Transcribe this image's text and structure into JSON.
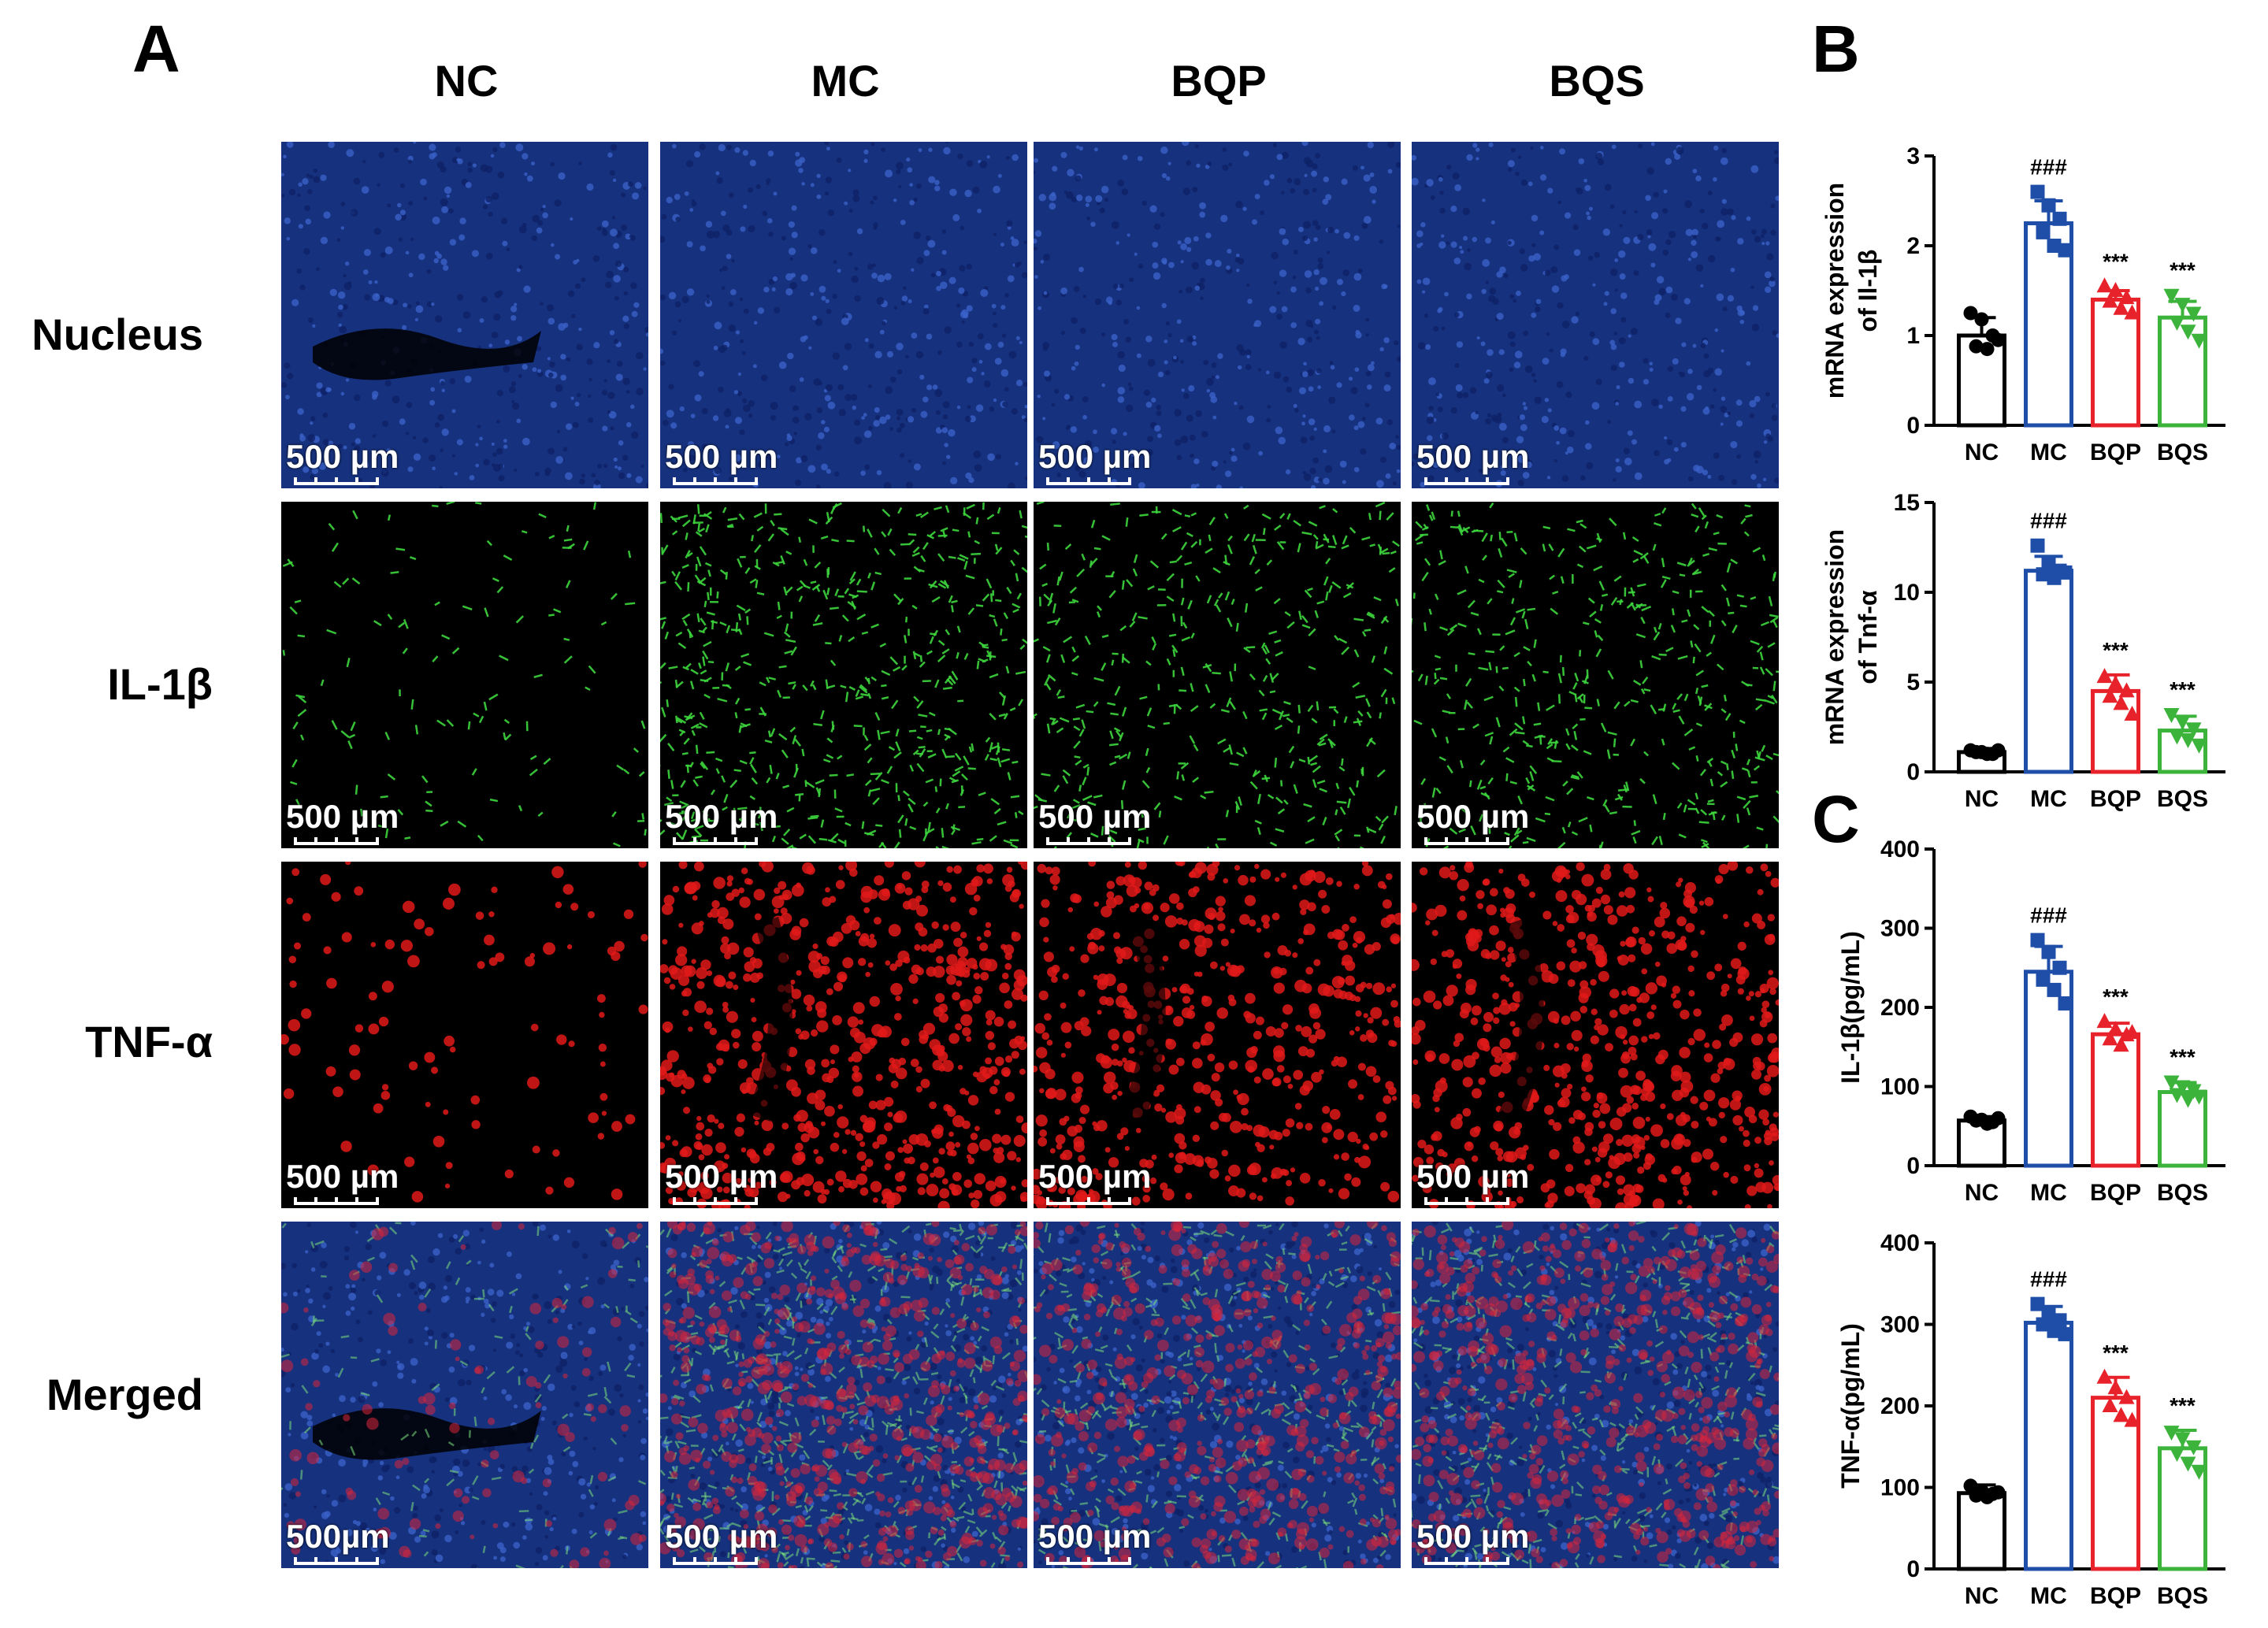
{
  "panels": {
    "a": "A",
    "b": "B",
    "c": "C"
  },
  "columns": [
    "NC",
    "MC",
    "BQP",
    "BQS"
  ],
  "rows": [
    {
      "label": "Nucleus",
      "channel": "blue",
      "scalebars": [
        "500 µm",
        "500 µm",
        "500 µm",
        "500 µm"
      ]
    },
    {
      "label": "IL-1β",
      "channel": "green",
      "scalebars": [
        "500 µm",
        "500 µm",
        "500 µm",
        "500 µm"
      ]
    },
    {
      "label": "TNF-α",
      "channel": "red",
      "scalebars": [
        "500 µm",
        "500 µm",
        "500 µm",
        "500 µm"
      ]
    },
    {
      "label": "Merged",
      "channel": "merged",
      "scalebars": [
        "500µm",
        "500 µm",
        "500 µm",
        "500 µm"
      ]
    }
  ],
  "colors": {
    "NC": "#000000",
    "MC": "#1f4ea8",
    "BQP": "#e8222a",
    "BQS": "#3cb43c",
    "nucleus": "#1d3f9a",
    "il1b": "#3dd63d",
    "tnfa": "#e11919"
  },
  "chart_data": [
    {
      "type": "bar",
      "panel": "B",
      "categories": [
        "NC",
        "MC",
        "BQP",
        "BQS"
      ],
      "values": [
        1.0,
        2.25,
        1.4,
        1.2
      ],
      "errors": [
        0.2,
        0.25,
        0.1,
        0.18
      ],
      "points": [
        [
          1.25,
          1.18,
          1.0,
          0.88,
          0.85,
          0.95
        ],
        [
          2.6,
          2.45,
          2.3,
          2.15,
          2.0,
          1.95
        ],
        [
          1.55,
          1.5,
          1.42,
          1.38,
          1.3,
          1.25
        ],
        [
          1.45,
          1.35,
          1.25,
          1.15,
          1.05,
          0.95
        ]
      ],
      "annotations": [
        "",
        "###",
        "***",
        "***"
      ],
      "ylabel": [
        "mRNA expression",
        "of Il-1β"
      ],
      "ylim": [
        0,
        3
      ],
      "yticks": [
        "0",
        "1",
        "2",
        "3"
      ]
    },
    {
      "type": "bar",
      "panel": "B",
      "categories": [
        "NC",
        "MC",
        "BQP",
        "BQS"
      ],
      "values": [
        1.1,
        11.2,
        4.5,
        2.3
      ],
      "errors": [
        0.2,
        0.8,
        0.9,
        0.8
      ],
      "points": [
        [
          1.2,
          1.1,
          1.0,
          1.1,
          1.0,
          1.2
        ],
        [
          12.6,
          11.6,
          11.2,
          11.0,
          10.8,
          11.1
        ],
        [
          5.3,
          4.9,
          4.5,
          4.2,
          3.8,
          3.2
        ],
        [
          3.2,
          2.8,
          2.4,
          2.0,
          1.8,
          1.5
        ]
      ],
      "annotations": [
        "",
        "###",
        "***",
        "***"
      ],
      "ylabel": [
        "mRNA expression",
        "of Tnf-α"
      ],
      "ylim": [
        0,
        15
      ],
      "yticks": [
        "0",
        "5",
        "10",
        "15"
      ]
    },
    {
      "type": "bar",
      "panel": "C",
      "categories": [
        "NC",
        "MC",
        "BQP",
        "BQS"
      ],
      "values": [
        57,
        245,
        166,
        93
      ],
      "errors": [
        5,
        32,
        14,
        12
      ],
      "points": [
        [
          62,
          58,
          55,
          57,
          53,
          60
        ],
        [
          285,
          270,
          250,
          235,
          222,
          205
        ],
        [
          182,
          172,
          165,
          160,
          152,
          168
        ],
        [
          106,
          100,
          95,
          90,
          84,
          88
        ]
      ],
      "annotations": [
        "",
        "###",
        "***",
        "***"
      ],
      "ylabel": [
        "IL-1β(pg/mL)"
      ],
      "ylim": [
        0,
        400
      ],
      "yticks": [
        "0",
        "100",
        "200",
        "300",
        "400"
      ]
    },
    {
      "type": "bar",
      "panel": "C",
      "categories": [
        "NC",
        "MC",
        "BQP",
        "BQS"
      ],
      "values": [
        93,
        302,
        210,
        148
      ],
      "errors": [
        10,
        20,
        25,
        22
      ],
      "points": [
        [
          102,
          96,
          92,
          90,
          88,
          94
        ],
        [
          325,
          312,
          305,
          300,
          292,
          288
        ],
        [
          235,
          222,
          210,
          200,
          188,
          182
        ],
        [
          168,
          160,
          150,
          142,
          130,
          120
        ]
      ],
      "annotations": [
        "",
        "###",
        "***",
        "***"
      ],
      "ylabel": [
        "TNF-α(pg/mL)"
      ],
      "ylim": [
        0,
        400
      ],
      "yticks": [
        "0",
        "100",
        "200",
        "300",
        "400"
      ]
    }
  ]
}
